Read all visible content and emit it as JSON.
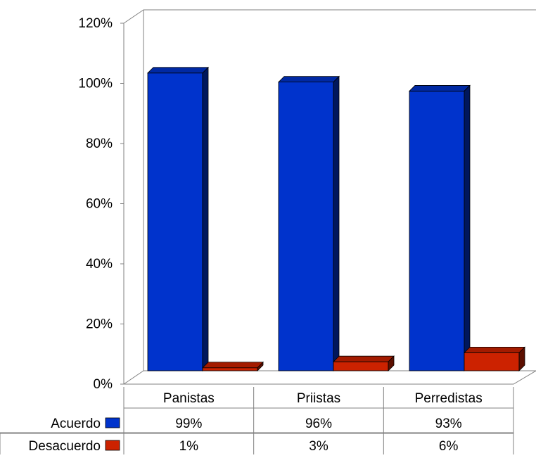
{
  "chart_data": {
    "type": "bar",
    "style": "3d-clustered-column-with-data-table",
    "categories": [
      "Panistas",
      "Priistas",
      "Perredistas"
    ],
    "series": [
      {
        "name": "Acuerdo",
        "values": [
          99,
          96,
          93
        ],
        "labels": [
          "99%",
          "96%",
          "93%"
        ],
        "color": "#0033CC"
      },
      {
        "name": "Desacuerdo",
        "values": [
          1,
          3,
          6
        ],
        "labels": [
          "1%",
          "3%",
          "6%"
        ],
        "color": "#CC2200"
      }
    ],
    "ylim": [
      0,
      120
    ],
    "yticks": [
      "0%",
      "20%",
      "40%",
      "60%",
      "80%",
      "100%",
      "120%"
    ],
    "grid": false,
    "legend": "data-table"
  }
}
